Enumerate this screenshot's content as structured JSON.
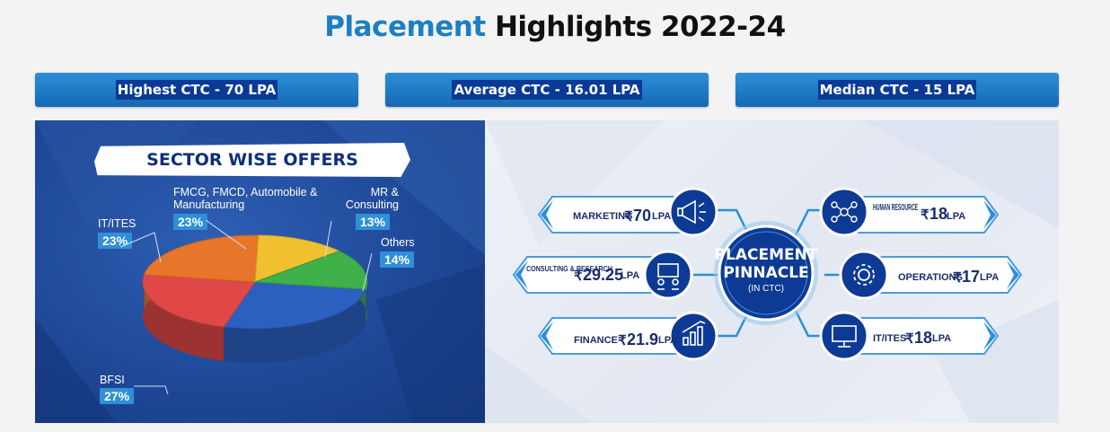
{
  "page": {
    "title_accent": "Placement",
    "title_rest": "Highlights 2022-24"
  },
  "stats": [
    {
      "label": "Highest CTC - 70 LPA"
    },
    {
      "label": "Average CTC - 16.01 LPA"
    },
    {
      "label": "Median CTC - 15 LPA"
    }
  ],
  "chart_data": [
    {
      "type": "pie",
      "title": "SECTOR WISE OFFERS",
      "slices": [
        {
          "label": "BFSI",
          "value": 27,
          "display": "27%",
          "color": "#2b5fc0"
        },
        {
          "label": "IT/ITES",
          "value": 23,
          "display": "23%",
          "color": "#e04848"
        },
        {
          "label": "FMCG, FMCD, Automobile & Manufacturing",
          "value": 23,
          "display": "23%",
          "color": "#e8762a"
        },
        {
          "label": "MR & Consulting",
          "value": 13,
          "display": "13%",
          "color": "#f0c02e"
        },
        {
          "label": "Others",
          "value": 14,
          "display": "14%",
          "color": "#3fb04a"
        }
      ]
    }
  ],
  "pinnacle": {
    "center_line1": "PLACEMENT",
    "center_line2": "PINNACLE",
    "center_line3": "(IN CTC)",
    "items": [
      {
        "name": "MARKETING",
        "symbol": "₹",
        "value": "70",
        "unit": "LPA",
        "icon": "megaphone-icon"
      },
      {
        "name": "CONSULTING & RESEARCH",
        "symbol": "₹",
        "value": "29.25",
        "unit": "LPA",
        "icon": "consulting-icon"
      },
      {
        "name": "FINANCE",
        "symbol": "₹",
        "value": "21.9",
        "unit": "LPA",
        "icon": "finance-chart-icon"
      },
      {
        "name": "HUMAN RESOURCE",
        "symbol": "₹",
        "value": "18",
        "unit": "LPA",
        "icon": "network-people-icon"
      },
      {
        "name": "OPERATIONS",
        "symbol": "₹",
        "value": "17",
        "unit": "LPA",
        "icon": "gear-icon"
      },
      {
        "name": "IT/ITES",
        "symbol": "₹",
        "value": "18",
        "unit": "LPA",
        "icon": "computer-icon"
      }
    ]
  }
}
